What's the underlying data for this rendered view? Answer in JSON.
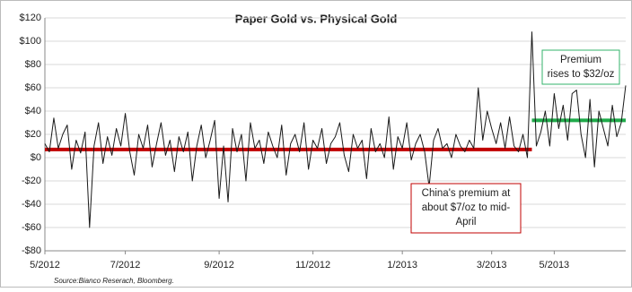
{
  "chart_data": {
    "type": "line",
    "title": "Paper Gold vs. Physical Gold",
    "source": "Source:Bianco Reserach, Bloomberg.",
    "annotations": [
      {
        "lines": [
          "Premium",
          "rises to $32/oz"
        ],
        "color": "#33b36b"
      },
      {
        "lines": [
          "China's premium at",
          "about $7/oz to mid-",
          "April"
        ],
        "color": "#c00000"
      }
    ],
    "categories": [
      "5/2012",
      null,
      null,
      null,
      null,
      null,
      null,
      null,
      null,
      null,
      null,
      null,
      null,
      null,
      null,
      null,
      null,
      null,
      "7/2012",
      null,
      null,
      null,
      null,
      null,
      null,
      null,
      null,
      null,
      null,
      null,
      null,
      null,
      null,
      null,
      null,
      null,
      null,
      null,
      null,
      "9/2012",
      null,
      null,
      null,
      null,
      null,
      null,
      null,
      null,
      null,
      null,
      null,
      null,
      null,
      null,
      null,
      null,
      null,
      null,
      null,
      null,
      "11/2012",
      null,
      null,
      null,
      null,
      null,
      null,
      null,
      null,
      null,
      null,
      null,
      null,
      null,
      null,
      null,
      null,
      null,
      null,
      null,
      "1/2013",
      null,
      null,
      null,
      null,
      null,
      null,
      null,
      null,
      null,
      null,
      null,
      null,
      null,
      null,
      null,
      null,
      null,
      null,
      null,
      "3/2013",
      null,
      null,
      null,
      null,
      null,
      null,
      null,
      null,
      null,
      null,
      null,
      null,
      null,
      "5/2013",
      null,
      null,
      null,
      null,
      null,
      null,
      null,
      null,
      null,
      null,
      null,
      null,
      null,
      null,
      null,
      null
    ],
    "series": [
      {
        "color": "#1a1a1a",
        "width": 1,
        "values": [
          12,
          5,
          34,
          8,
          20,
          28,
          -10,
          15,
          4,
          22,
          -60,
          10,
          30,
          -5,
          18,
          2,
          25,
          10,
          38,
          5,
          -15,
          20,
          8,
          28,
          -8,
          12,
          30,
          2,
          15,
          -12,
          18,
          5,
          22,
          -20,
          10,
          28,
          0,
          15,
          32,
          -35,
          10,
          -38,
          25,
          5,
          20,
          -20,
          30,
          8,
          15,
          -5,
          22,
          10,
          0,
          28,
          -15,
          12,
          20,
          5,
          30,
          -10,
          15,
          8,
          25,
          -5,
          12,
          18,
          30,
          2,
          -12,
          20,
          8,
          15,
          -18,
          25,
          5,
          12,
          0,
          35,
          -10,
          18,
          8,
          30,
          -2,
          12,
          20,
          5,
          -25,
          15,
          25,
          8,
          12,
          0,
          20,
          10,
          5,
          15,
          8,
          60,
          15,
          40,
          25,
          12,
          30,
          8,
          35,
          10,
          5,
          20,
          0,
          108,
          10,
          22,
          40,
          10,
          55,
          25,
          45,
          15,
          55,
          58,
          20,
          0,
          50,
          -8,
          40,
          25,
          10,
          45,
          18,
          30,
          62
        ]
      },
      {
        "color": "#c00000",
        "width": 4,
        "values": [
          7,
          7,
          7,
          7,
          7,
          7,
          7,
          7,
          7,
          7,
          7,
          7,
          7,
          7,
          7,
          7,
          7,
          7,
          7,
          7,
          7,
          7,
          7,
          7,
          7,
          7,
          7,
          7,
          7,
          7,
          7,
          7,
          7,
          7,
          7,
          7,
          7,
          7,
          7,
          7,
          7,
          7,
          7,
          7,
          7,
          7,
          7,
          7,
          7,
          7,
          7,
          7,
          7,
          7,
          7,
          7,
          7,
          7,
          7,
          7,
          7,
          7,
          7,
          7,
          7,
          7,
          7,
          7,
          7,
          7,
          7,
          7,
          7,
          7,
          7,
          7,
          7,
          7,
          7,
          7,
          7,
          7,
          7,
          7,
          7,
          7,
          7,
          7,
          7,
          7,
          7,
          7,
          7,
          7,
          7,
          7,
          7,
          7,
          7,
          7,
          7,
          7,
          7,
          7,
          7,
          7,
          7,
          7,
          7,
          7,
          null,
          null,
          null,
          null,
          null,
          null,
          null,
          null,
          null,
          null,
          null,
          null,
          null,
          null,
          null,
          null,
          null,
          null,
          null,
          null,
          null
        ]
      },
      {
        "color": "#1faa4a",
        "width": 4,
        "values": [
          null,
          null,
          null,
          null,
          null,
          null,
          null,
          null,
          null,
          null,
          null,
          null,
          null,
          null,
          null,
          null,
          null,
          null,
          null,
          null,
          null,
          null,
          null,
          null,
          null,
          null,
          null,
          null,
          null,
          null,
          null,
          null,
          null,
          null,
          null,
          null,
          null,
          null,
          null,
          null,
          null,
          null,
          null,
          null,
          null,
          null,
          null,
          null,
          null,
          null,
          null,
          null,
          null,
          null,
          null,
          null,
          null,
          null,
          null,
          null,
          null,
          null,
          null,
          null,
          null,
          null,
          null,
          null,
          null,
          null,
          null,
          null,
          null,
          null,
          null,
          null,
          null,
          null,
          null,
          null,
          null,
          null,
          null,
          null,
          null,
          null,
          null,
          null,
          null,
          null,
          null,
          null,
          null,
          null,
          null,
          null,
          null,
          null,
          null,
          null,
          null,
          null,
          null,
          null,
          null,
          null,
          null,
          null,
          null,
          32,
          32,
          32,
          32,
          32,
          32,
          32,
          32,
          32,
          32,
          32,
          32,
          32,
          32,
          32,
          32,
          32,
          32,
          32,
          32,
          32,
          32
        ]
      }
    ],
    "ylim": [
      -80,
      120
    ],
    "yticks": [
      {
        "value": -80,
        "label": "-$80"
      },
      {
        "value": -60,
        "label": "-$60"
      },
      {
        "value": -40,
        "label": "-$40"
      },
      {
        "value": -20,
        "label": "-$20"
      },
      {
        "value": 0,
        "label": "$0"
      },
      {
        "value": 20,
        "label": "$20"
      },
      {
        "value": 40,
        "label": "$40"
      },
      {
        "value": 60,
        "label": "$60"
      },
      {
        "value": 80,
        "label": "$80"
      },
      {
        "value": 100,
        "label": "$100"
      },
      {
        "value": 120,
        "label": "$120"
      }
    ],
    "grid": true
  }
}
